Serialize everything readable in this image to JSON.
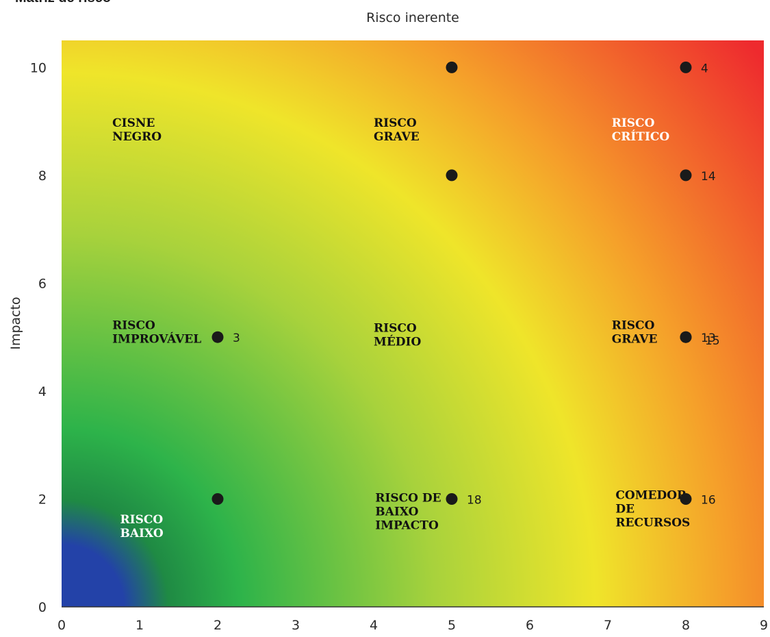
{
  "page_title": "Matriz de risco",
  "chart_data": {
    "type": "scatter",
    "title": "Risco inerente",
    "ylabel": "Impacto",
    "xlabel": "",
    "xlim": [
      0,
      9
    ],
    "ylim": [
      0,
      10.5
    ],
    "x_ticks": [
      0,
      1,
      2,
      3,
      4,
      5,
      6,
      7,
      8,
      9
    ],
    "y_ticks": [
      0,
      2,
      4,
      6,
      8,
      10
    ],
    "grid": false,
    "points": [
      {
        "x": 5,
        "y": 10,
        "label": ""
      },
      {
        "x": 8,
        "y": 10,
        "label": "4"
      },
      {
        "x": 5,
        "y": 8,
        "label": ""
      },
      {
        "x": 8,
        "y": 8,
        "label": "14"
      },
      {
        "x": 2,
        "y": 5,
        "label": "3"
      },
      {
        "x": 8,
        "y": 5,
        "label": "13"
      },
      {
        "x": 8,
        "y": 5,
        "label": "15"
      },
      {
        "x": 2,
        "y": 2,
        "label": ""
      },
      {
        "x": 5,
        "y": 2,
        "label": "18"
      },
      {
        "x": 8,
        "y": 2,
        "label": "16"
      }
    ],
    "zones": [
      {
        "lines": [
          "CISNE",
          "NEGRO"
        ],
        "x": 0.65,
        "y": 8.9,
        "color": "#111111"
      },
      {
        "lines": [
          "RISCO",
          "GRAVE"
        ],
        "x": 4.0,
        "y": 8.9,
        "color": "#111111"
      },
      {
        "lines": [
          "RISCO",
          "CRÍTICO"
        ],
        "x": 7.05,
        "y": 8.9,
        "color": "#ffffff"
      },
      {
        "lines": [
          "RISCO",
          "IMPROVÁVEL"
        ],
        "x": 0.65,
        "y": 5.15,
        "color": "#111111"
      },
      {
        "lines": [
          "RISCO",
          "MÉDIO"
        ],
        "x": 4.0,
        "y": 5.1,
        "color": "#111111"
      },
      {
        "lines": [
          "RISCO",
          "GRAVE"
        ],
        "x": 7.05,
        "y": 5.15,
        "color": "#111111"
      },
      {
        "lines": [
          "RISCO",
          "BAIXO"
        ],
        "x": 0.75,
        "y": 1.55,
        "color": "#ffffff"
      },
      {
        "lines": [
          "RISCO DE",
          "BAIXO",
          "IMPACTO"
        ],
        "x": 4.02,
        "y": 1.95,
        "color": "#111111"
      },
      {
        "lines": [
          "COMEDOR",
          "DE",
          "RECURSOS"
        ],
        "x": 7.1,
        "y": 2.0,
        "color": "#111111"
      }
    ],
    "colors": {
      "low": "#2342a8",
      "green": "#2db34a",
      "yellow_green": "#a8d23c",
      "yellow": "#efe52a",
      "orange": "#f59f2a",
      "red": "#ee2a2e",
      "point": "#1a1a1a"
    }
  }
}
